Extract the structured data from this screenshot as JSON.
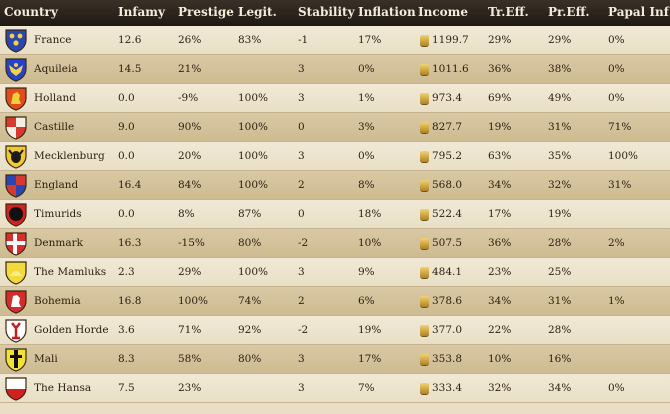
{
  "headers": {
    "country": "Country",
    "infamy": "Infamy",
    "prestige": "Prestige",
    "legit": "Legit.",
    "stability": "Stability",
    "inflation": "Inflation",
    "income": "Income",
    "treff": "Tr.Eff.",
    "preff": "Pr.Eff.",
    "papal": "Papal Inf"
  },
  "rows": [
    {
      "country": "France",
      "infamy": "12.6",
      "prestige": "26%",
      "legit": "83%",
      "stability": "-1",
      "inflation": "17%",
      "income": "1199.7",
      "treff": "29%",
      "preff": "29%",
      "papal": "0%",
      "shield_icon": "france-shield-icon",
      "colors": {
        "field": "#2b46b3",
        "charge": "#f2d13a"
      }
    },
    {
      "country": "Aquileia",
      "infamy": "14.5",
      "prestige": "21%",
      "legit": "",
      "stability": "3",
      "inflation": "0%",
      "income": "1011.6",
      "treff": "36%",
      "preff": "38%",
      "papal": "0%",
      "shield_icon": "aquileia-shield-icon",
      "colors": {
        "field": "#2443c9",
        "charge": "#f3d24a"
      }
    },
    {
      "country": "Holland",
      "infamy": "0.0",
      "prestige": "-9%",
      "legit": "100%",
      "stability": "3",
      "inflation": "1%",
      "income": "973.4",
      "treff": "69%",
      "preff": "49%",
      "papal": "0%",
      "shield_icon": "holland-shield-icon",
      "colors": {
        "field": "#e24b1b",
        "charge": "#f2d13a"
      }
    },
    {
      "country": "Castille",
      "infamy": "9.0",
      "prestige": "90%",
      "legit": "100%",
      "stability": "0",
      "inflation": "3%",
      "income": "827.7",
      "treff": "19%",
      "preff": "31%",
      "papal": "71%",
      "shield_icon": "castille-shield-icon",
      "colors": {
        "field": "#d53a2c",
        "charge": "#f4efe6"
      }
    },
    {
      "country": "Mecklenburg",
      "infamy": "0.0",
      "prestige": "20%",
      "legit": "100%",
      "stability": "3",
      "inflation": "0%",
      "income": "795.2",
      "treff": "63%",
      "preff": "35%",
      "papal": "100%",
      "shield_icon": "mecklenburg-shield-icon",
      "colors": {
        "field": "#f0c92f",
        "charge": "#1b1b1b"
      }
    },
    {
      "country": "England",
      "infamy": "16.4",
      "prestige": "84%",
      "legit": "100%",
      "stability": "2",
      "inflation": "8%",
      "income": "568.0",
      "treff": "34%",
      "preff": "32%",
      "papal": "31%",
      "shield_icon": "england-shield-icon",
      "colors": {
        "field": "#d33b30",
        "charge": "#2b46b3"
      }
    },
    {
      "country": "Timurids",
      "infamy": "0.0",
      "prestige": "8%",
      "legit": "87%",
      "stability": "0",
      "inflation": "18%",
      "income": "522.4",
      "treff": "17%",
      "preff": "19%",
      "papal": "",
      "shield_icon": "timurids-shield-icon",
      "colors": {
        "field": "#d62020",
        "charge": "#111111"
      }
    },
    {
      "country": "Denmark",
      "infamy": "16.3",
      "prestige": "-15%",
      "legit": "80%",
      "stability": "-2",
      "inflation": "10%",
      "income": "507.5",
      "treff": "36%",
      "preff": "28%",
      "papal": "2%",
      "shield_icon": "denmark-shield-icon",
      "colors": {
        "field": "#d82d2d",
        "charge": "#ffffff"
      }
    },
    {
      "country": "The Mamluks",
      "infamy": "2.3",
      "prestige": "29%",
      "legit": "100%",
      "stability": "3",
      "inflation": "9%",
      "income": "484.1",
      "treff": "23%",
      "preff": "25%",
      "papal": "",
      "shield_icon": "mamluks-shield-icon",
      "colors": {
        "field": "#f2da3c",
        "charge": "#f7ea8f"
      }
    },
    {
      "country": "Bohemia",
      "infamy": "16.8",
      "prestige": "100%",
      "legit": "74%",
      "stability": "2",
      "inflation": "6%",
      "income": "378.6",
      "treff": "34%",
      "preff": "31%",
      "papal": "1%",
      "shield_icon": "bohemia-shield-icon",
      "colors": {
        "field": "#d62b2b",
        "charge": "#ffffff"
      }
    },
    {
      "country": "Golden Horde",
      "infamy": "3.6",
      "prestige": "71%",
      "legit": "92%",
      "stability": "-2",
      "inflation": "19%",
      "income": "377.0",
      "treff": "22%",
      "preff": "28%",
      "papal": "",
      "shield_icon": "golden-horde-shield-icon",
      "colors": {
        "field": "#ffffff",
        "charge": "#c81c1c"
      }
    },
    {
      "country": "Mali",
      "infamy": "8.3",
      "prestige": "58%",
      "legit": "80%",
      "stability": "3",
      "inflation": "17%",
      "income": "353.8",
      "treff": "10%",
      "preff": "16%",
      "papal": "",
      "shield_icon": "mali-shield-icon",
      "colors": {
        "field": "#f1e23a",
        "charge": "#111111"
      }
    },
    {
      "country": "The Hansa",
      "infamy": "7.5",
      "prestige": "23%",
      "legit": "",
      "stability": "3",
      "inflation": "7%",
      "income": "333.4",
      "treff": "32%",
      "preff": "34%",
      "papal": "0%",
      "shield_icon": "hansa-shield-icon",
      "colors": {
        "field": "#ffffff",
        "charge": "#d12020"
      }
    }
  ]
}
